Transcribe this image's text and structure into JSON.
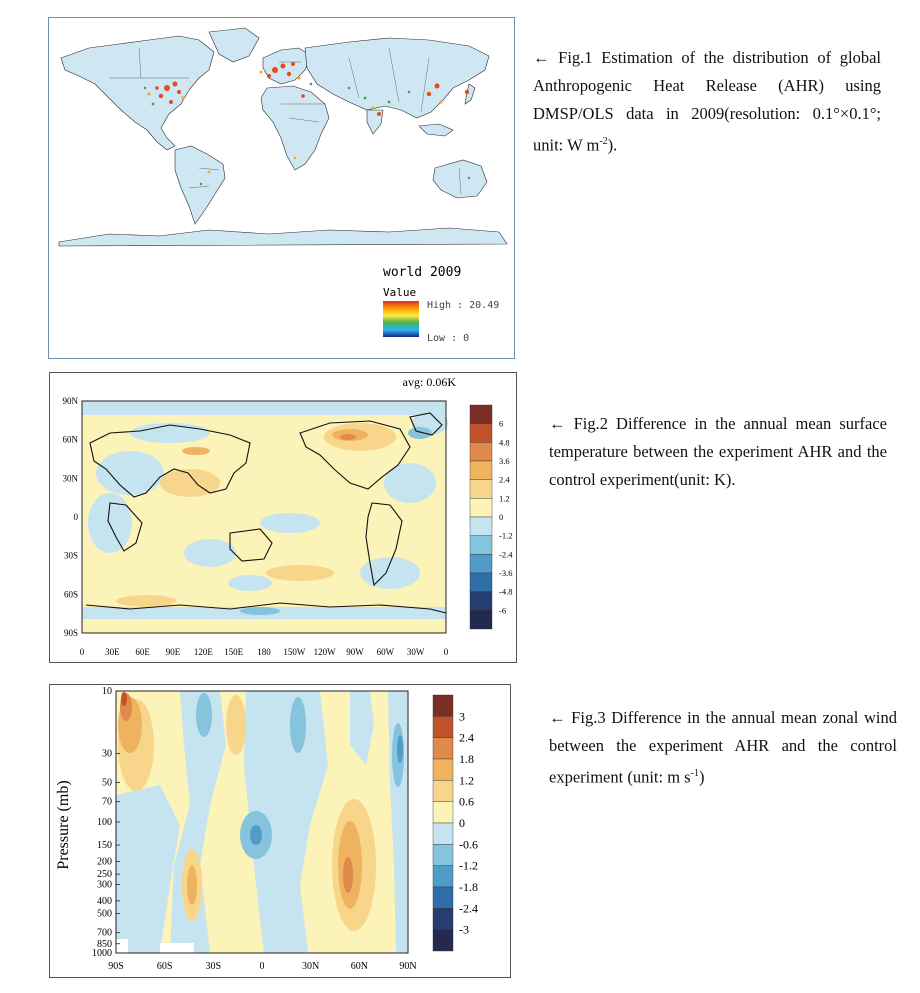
{
  "fig1": {
    "legend_title": "world 2009",
    "legend_subtitle": "Value",
    "high_label": "High : 20.49",
    "low_label": "Low : 0",
    "ocean_color": "#bfe3f5",
    "land_color": "#cfe7f3"
  },
  "fig2": {
    "avg_label": "avg: 0.06K",
    "y_ticks": [
      "90N",
      "60N",
      "30N",
      "0",
      "30S",
      "60S",
      "90S"
    ],
    "x_ticks": [
      "0",
      "30E",
      "60E",
      "90E",
      "120E",
      "150E",
      "180",
      "150W",
      "120W",
      "90W",
      "60W",
      "30W",
      "0"
    ],
    "colorbar_labels": [
      "6",
      "4.8",
      "3.6",
      "2.4",
      "1.2",
      "0",
      "-1.2",
      "-2.4",
      "-3.6",
      "-4.8",
      "-6"
    ],
    "colorbar_colors": [
      "#7a2e26",
      "#c0522c",
      "#df8a4a",
      "#efb35f",
      "#f7d68c",
      "#fbf3b8",
      "#c6e4ef",
      "#86c3dc",
      "#4f9cc8",
      "#2e6ea9",
      "#263d71",
      "#242a4e"
    ]
  },
  "fig3": {
    "ylabel": "Pressure (mb)",
    "y_ticks": [
      "10",
      "30",
      "50",
      "70",
      "100",
      "150",
      "200",
      "250",
      "300",
      "400",
      "500",
      "700",
      "850",
      "1000"
    ],
    "x_ticks": [
      "90S",
      "60S",
      "30S",
      "0",
      "30N",
      "60N",
      "90N"
    ],
    "colorbar_labels": [
      "3",
      "2.4",
      "1.8",
      "1.2",
      "0.6",
      "0",
      "-0.6",
      "-1.2",
      "-1.8",
      "-2.4",
      "-3"
    ],
    "colorbar_colors": [
      "#7a2e26",
      "#c0522c",
      "#df8a4a",
      "#efb35f",
      "#f7d68c",
      "#fbf3b8",
      "#c6e4ef",
      "#86c3dc",
      "#4f9cc8",
      "#2e6ea9",
      "#263d71",
      "#242a4e"
    ]
  },
  "captions": {
    "fig1_main": "← Fig.1 Estimation of the distribution of global Anthropogenic Heat Release (AHR) using DMSP/OLS data in 2009(resolution: 0.1°×0.1°; unit: W m",
    "fig1_sup": "-2",
    "fig1_tail": ").",
    "fig2": "← Fig.2 Difference in the annual mean surface temperature between the experiment AHR and the control experiment(unit: K).",
    "fig3_main": "← Fig.3 Difference in the annual mean zonal wind between the experiment AHR and the control experiment (unit: m s",
    "fig3_sup": "-1",
    "fig3_tail": ")"
  }
}
